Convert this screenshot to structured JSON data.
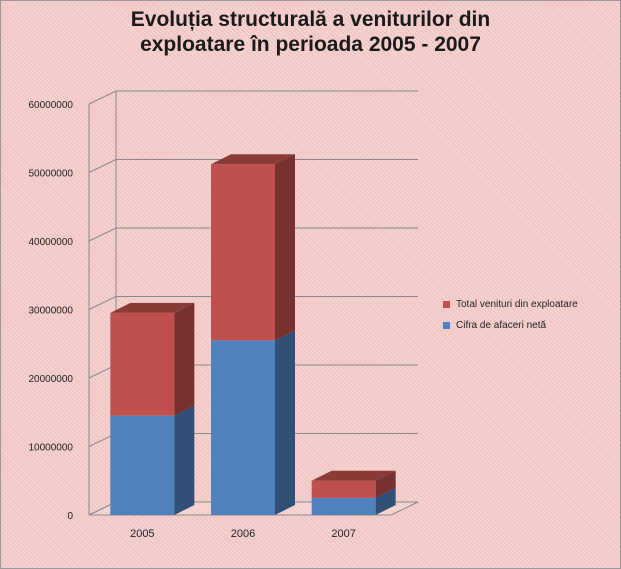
{
  "chart_data": {
    "type": "bar",
    "stacked": true,
    "style": "3d-column",
    "title": "Evoluția structurală a veniturilor din exploatare în perioada 2005 - 2007",
    "title_lines": [
      "Evoluția structurală a veniturilor din",
      "exploatare în perioada 2005 - 2007"
    ],
    "categories": [
      "2005",
      "2006",
      "2007"
    ],
    "series": [
      {
        "name": "Cifra de afaceri netă",
        "values": [
          14500000,
          25500000,
          2500000
        ],
        "color": "#4f81bd"
      },
      {
        "name": "Total venituri din exploatare",
        "values": [
          15000000,
          25700000,
          2500000
        ],
        "color": "#c0504d"
      }
    ],
    "ylim": [
      0,
      60000000
    ],
    "yticks": [
      "0",
      "10000000",
      "20000000",
      "30000000",
      "40000000",
      "50000000",
      "60000000"
    ],
    "grid": true,
    "legend_position": "right"
  }
}
